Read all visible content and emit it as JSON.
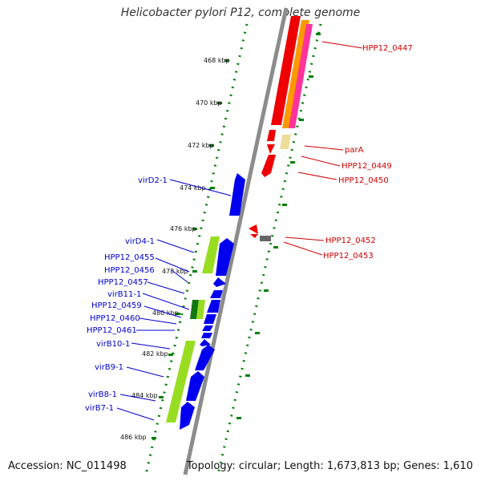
{
  "title": "Helicobacter pylori P12, complete genome",
  "footer": {
    "accession": "Accession: NC_011498",
    "summary": "Topology: circular; Length: 1,673,813 bp; Genes: 1,610"
  },
  "colors": {
    "backbone": "#8c8c8c",
    "tick": "#008000",
    "left_label": "#0000cc",
    "right_label": "#cc0000",
    "blue_gene": "#0000ee",
    "green_gene": "#99dd22",
    "dark_green_gene": "#117711",
    "red_gene": "#ee0000",
    "orange_gene": "#ff9900",
    "pink_gene": "#ff3399",
    "pale_gene": "#eedd99",
    "grey_gene": "#666666"
  },
  "scale_labels": [
    "468 kbp",
    "470 kbp",
    "472 kbp",
    "474 kbp",
    "476 kbp",
    "478 kbp",
    "480 kbp",
    "482 kbp",
    "484 kbp",
    "486 kbp"
  ],
  "left_genes": [
    "virD2-1",
    "virD4-1",
    "HPP12_0455",
    "HPP12_0456",
    "HPP12_0457",
    "virB11-1",
    "HPP12_0459",
    "HPP12_0460",
    "HPP12_0461",
    "virB10-1",
    "virB9-1",
    "virB8-1",
    "virB7-1"
  ],
  "right_genes": [
    "HPP12_0447",
    "parA",
    "HPP12_0449",
    "HPP12_0450",
    "HPP12_0452",
    "HPP12_0453"
  ]
}
